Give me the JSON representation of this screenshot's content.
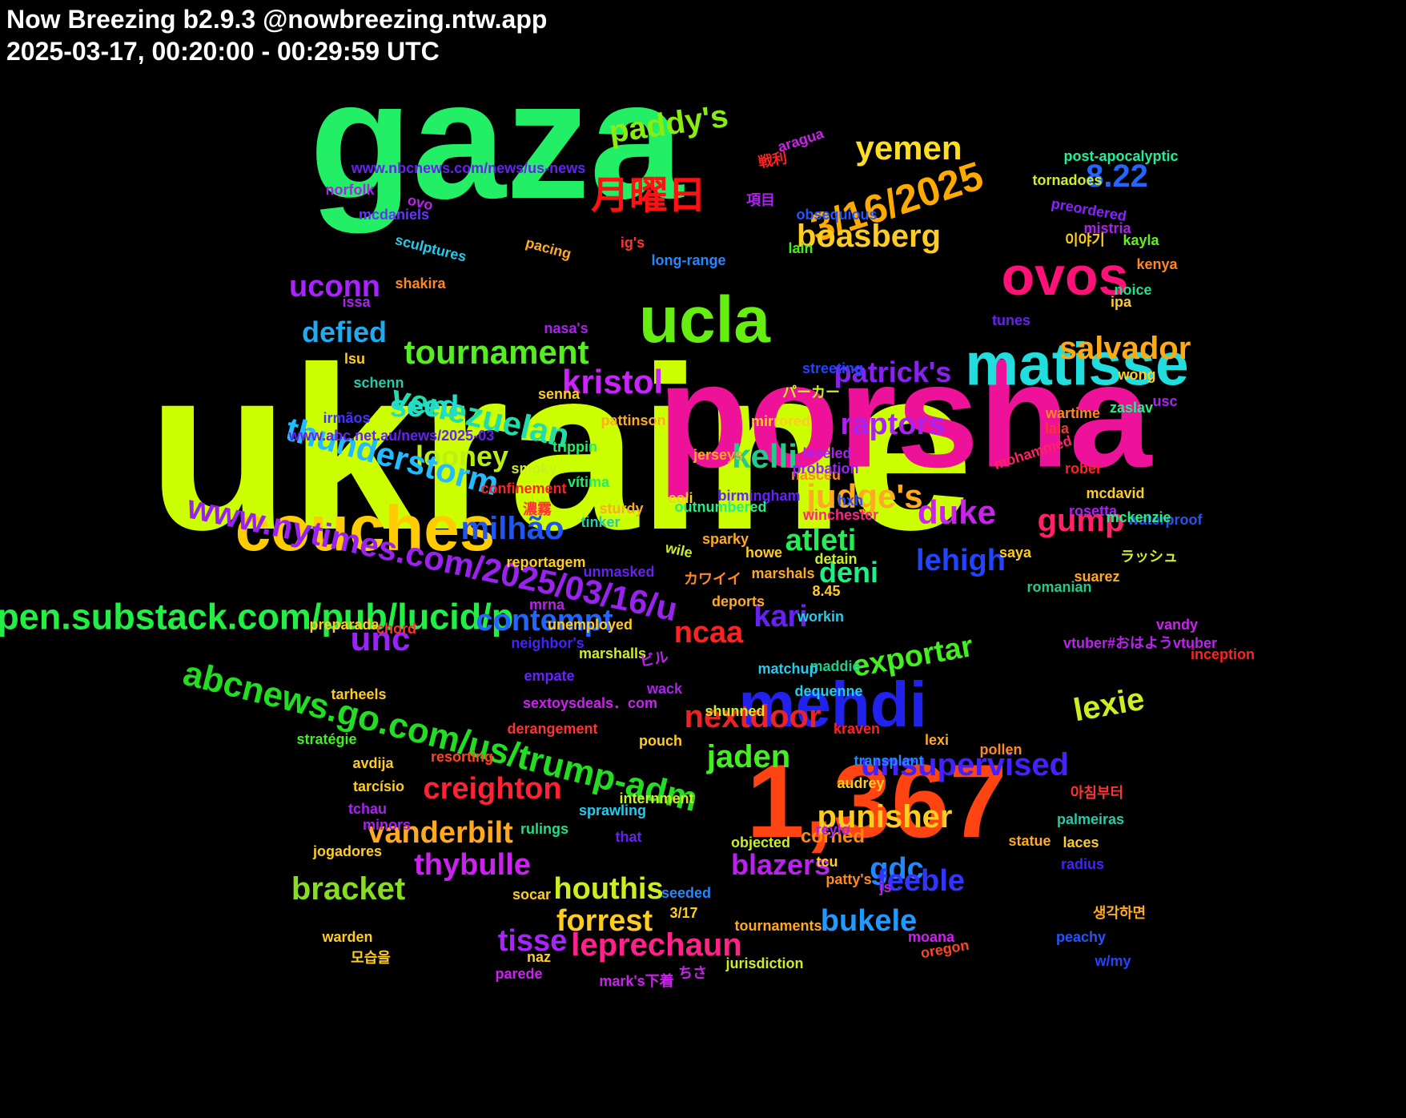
{
  "header": {
    "title": "Now Breezing b2.9.3 @nowbreezing.ntw.app",
    "subtitle": "2025-03-17, 00:20:00 - 00:29:59 UTC"
  },
  "words": [
    {
      "text": "ukraine",
      "color": "#ccff00"
    },
    {
      "text": "gaza",
      "color": "#22ee66"
    },
    {
      "text": "porsha",
      "color": "#ee1199"
    },
    {
      "text": "1,367",
      "color": "#ff4411"
    },
    {
      "text": "couches",
      "color": "#ffcc00"
    },
    {
      "text": "matisse",
      "color": "#22dddd"
    },
    {
      "text": "mehdi",
      "color": "#2222ee"
    },
    {
      "text": "ucla",
      "color": "#66ee11"
    },
    {
      "text": "ovos",
      "color": "#ff1177"
    },
    {
      "text": "open.substack.com/pub/lucid/p",
      "color": "#22ee44"
    },
    {
      "text": "www.nytimes.com/2025/03/16/u",
      "color": "#9922ee"
    },
    {
      "text": "abcnews.go.com/us/trump-adm",
      "color": "#22dd22"
    },
    {
      "text": "3/16/2025",
      "color": "#ffaa00"
    },
    {
      "text": "月曜日",
      "color": "#ff1111"
    },
    {
      "text": "paddy's",
      "color": "#88ee11"
    },
    {
      "text": "yemen",
      "color": "#ffdd22"
    },
    {
      "text": "boasberg",
      "color": "#ffcc22"
    },
    {
      "text": "8.22",
      "color": "#2266ff"
    },
    {
      "text": "uconn",
      "color": "#aa22ff"
    },
    {
      "text": "defied",
      "color": "#22aaee"
    },
    {
      "text": "tournament",
      "color": "#55ee22"
    },
    {
      "text": "kristol",
      "color": "#cc22ff"
    },
    {
      "text": "salvador",
      "color": "#ffaa11"
    },
    {
      "text": "venezuelan",
      "color": "#22ddaa"
    },
    {
      "text": "patrick's",
      "color": "#8822ee"
    },
    {
      "text": "seed",
      "color": "#22ddcc"
    },
    {
      "text": "raptors",
      "color": "#aa22ee"
    },
    {
      "text": "looney",
      "color": "#bbee11"
    },
    {
      "text": "kelli",
      "color": "#22cc88"
    },
    {
      "text": "thunderstorm",
      "color": "#22bbff"
    },
    {
      "text": "judge's",
      "color": "#ffaa22"
    },
    {
      "text": "duke",
      "color": "#cc22ee"
    },
    {
      "text": "gump",
      "color": "#ff2266"
    },
    {
      "text": "milhão",
      "color": "#2255ee"
    },
    {
      "text": "atleti",
      "color": "#22ee55"
    },
    {
      "text": "lehigh",
      "color": "#2244ff"
    },
    {
      "text": "deni",
      "color": "#22ee88"
    },
    {
      "text": "kari",
      "color": "#6622ee"
    },
    {
      "text": "contempt",
      "color": "#2266ff"
    },
    {
      "text": "ncaa",
      "color": "#ff2222"
    },
    {
      "text": "unc",
      "color": "#9922ff"
    },
    {
      "text": "exportar",
      "color": "#44ee22"
    },
    {
      "text": "nextdoor",
      "color": "#ee2222"
    },
    {
      "text": "lexie",
      "color": "#ccee22"
    },
    {
      "text": "jaden",
      "color": "#44ee22"
    },
    {
      "text": "creighton",
      "color": "#ff2233"
    },
    {
      "text": "unsupervised",
      "color": "#4422ff"
    },
    {
      "text": "vanderbilt",
      "color": "#ffaa22"
    },
    {
      "text": "punisher",
      "color": "#ffcc22"
    },
    {
      "text": "blazers",
      "color": "#bb22ee"
    },
    {
      "text": "thybulle",
      "color": "#cc22ee"
    },
    {
      "text": "gdc",
      "color": "#2288ff"
    },
    {
      "text": "bracket",
      "color": "#88dd22"
    },
    {
      "text": "houthis",
      "color": "#ccee22"
    },
    {
      "text": "feeble",
      "color": "#3333ff"
    },
    {
      "text": "bukele",
      "color": "#2299ff"
    },
    {
      "text": "tisse",
      "color": "#aa22ff"
    },
    {
      "text": "forrest",
      "color": "#ffcc22"
    },
    {
      "text": "leprechaun",
      "color": "#ff2288"
    },
    {
      "text": "corned",
      "color": "#ff8811"
    },
    {
      "text": "aragua",
      "color": "#cc22ee"
    },
    {
      "text": "戦利",
      "color": "#ff2222"
    },
    {
      "text": "www.nbcnews.com/news/us-news",
      "color": "#6622ee"
    },
    {
      "text": "post-apocalyptic",
      "color": "#22ee99"
    },
    {
      "text": "tornadoes",
      "color": "#ccee22"
    },
    {
      "text": "norfolk",
      "color": "#aa22ee"
    },
    {
      "text": "ovo",
      "color": "#bb22ee"
    },
    {
      "text": "項目",
      "color": "#aa22ee"
    },
    {
      "text": "obsequious",
      "color": "#2255ff"
    },
    {
      "text": "preordered",
      "color": "#8822ff"
    },
    {
      "text": "mistria",
      "color": "#aa22ee"
    },
    {
      "text": "mcdaniels",
      "color": "#6633ff"
    },
    {
      "text": "sculptures",
      "color": "#22ccee"
    },
    {
      "text": "ig's",
      "color": "#ff3333"
    },
    {
      "text": "이야기",
      "color": "#ffcc22"
    },
    {
      "text": "kayla",
      "color": "#66ee22"
    },
    {
      "text": "kenya",
      "color": "#ff8822"
    },
    {
      "text": "pacing",
      "color": "#ffaa22"
    },
    {
      "text": "lain",
      "color": "#44ee22"
    },
    {
      "text": "long-range",
      "color": "#2288ff"
    },
    {
      "text": "shakira",
      "color": "#ff8822"
    },
    {
      "text": "noice",
      "color": "#22dd88"
    },
    {
      "text": "issa",
      "color": "#aa22ee"
    },
    {
      "text": "ipa",
      "color": "#ffcc22"
    },
    {
      "text": "tunes",
      "color": "#6622ee"
    },
    {
      "text": "nasa's",
      "color": "#aa22ee"
    },
    {
      "text": "lsu",
      "color": "#ffcc22"
    },
    {
      "text": "schenn",
      "color": "#22ccaa"
    },
    {
      "text": "senna",
      "color": "#ffcc22"
    },
    {
      "text": "streeting",
      "color": "#2244ff"
    },
    {
      "text": "パーカー",
      "color": "#ccee22"
    },
    {
      "text": "wong",
      "color": "#ffcc22"
    },
    {
      "text": "zaslav",
      "color": "#22ee88"
    },
    {
      "text": "usc",
      "color": "#aa22ee"
    },
    {
      "text": "irmãos",
      "color": "#4433ff"
    },
    {
      "text": "mirrored",
      "color": "#ffcc22"
    },
    {
      "text": "wartime",
      "color": "#ff8822"
    },
    {
      "text": "pattinson",
      "color": "#ffaa22"
    },
    {
      "text": "lala",
      "color": "#ff3333"
    },
    {
      "text": "mohammed",
      "color": "#ff2266"
    },
    {
      "text": "www.abc.net.au/news/2025-03",
      "color": "#6622ee"
    },
    {
      "text": "leveled",
      "color": "#aa22ee"
    },
    {
      "text": "trippin",
      "color": "#22ee66"
    },
    {
      "text": "jerseys",
      "color": "#ffaa22"
    },
    {
      "text": "nasceu",
      "color": "#ff8822"
    },
    {
      "text": "smoky",
      "color": "#ccee22"
    },
    {
      "text": "probation",
      "color": "#9922ff"
    },
    {
      "text": "rober",
      "color": "#ff2222"
    },
    {
      "text": "vítima",
      "color": "#22ee66"
    },
    {
      "text": "confinement",
      "color": "#ff2222"
    },
    {
      "text": "birmingham",
      "color": "#6622ff"
    },
    {
      "text": "mcdavid",
      "color": "#ffcc22"
    },
    {
      "text": "hxh",
      "color": "#2255ff"
    },
    {
      "text": "rosetta",
      "color": "#aa22ee"
    },
    {
      "text": "sturdy",
      "color": "#ffaa22"
    },
    {
      "text": "outnumbered",
      "color": "#22ee88"
    },
    {
      "text": "waterproof",
      "color": "#2255ee"
    },
    {
      "text": "mckenzie",
      "color": "#22ee88"
    },
    {
      "text": "濃霧",
      "color": "#ff3333"
    },
    {
      "text": "coli",
      "color": "#ffcc22"
    },
    {
      "text": "tinker",
      "color": "#22ccaa"
    },
    {
      "text": "winchester",
      "color": "#ff2288"
    },
    {
      "text": "sparky",
      "color": "#ffaa22"
    },
    {
      "text": "wile",
      "color": "#ccee22"
    },
    {
      "text": "ラッシュ",
      "color": "#ccee22"
    },
    {
      "text": "saya",
      "color": "#ffcc22"
    },
    {
      "text": "howe",
      "color": "#ffcc22"
    },
    {
      "text": "reportagem",
      "color": "#ffcc22"
    },
    {
      "text": "detain",
      "color": "#ccee22"
    },
    {
      "text": "unmasked",
      "color": "#6622ee"
    },
    {
      "text": "suarez",
      "color": "#ffaa22"
    },
    {
      "text": "marshals",
      "color": "#ffaa22"
    },
    {
      "text": "romanian",
      "color": "#22cc88"
    },
    {
      "text": "8.45",
      "color": "#ffcc22"
    },
    {
      "text": "カワイイ",
      "color": "#ff8822"
    },
    {
      "text": "deports",
      "color": "#ffaa22"
    },
    {
      "text": "mrna",
      "color": "#bb22ee"
    },
    {
      "text": "workin",
      "color": "#22ccee"
    },
    {
      "text": "preparada",
      "color": "#ffcc22"
    },
    {
      "text": "vandy",
      "color": "#cc22ee"
    },
    {
      "text": "chord",
      "color": "#ff3333"
    },
    {
      "text": "unemployed",
      "color": "#ffcc22"
    },
    {
      "text": "neighbor's",
      "color": "#4422ff"
    },
    {
      "text": "vtuber#おはようvtuber",
      "color": "#bb22ee"
    },
    {
      "text": "inception",
      "color": "#ff2222"
    },
    {
      "text": "marshalls",
      "color": "#ccee22"
    },
    {
      "text": "ビル",
      "color": "#bb22ee"
    },
    {
      "text": "maddie",
      "color": "#22cc88"
    },
    {
      "text": "matchup",
      "color": "#22ccee"
    },
    {
      "text": "empate",
      "color": "#6622ff"
    },
    {
      "text": "tarheels",
      "color": "#ffcc22"
    },
    {
      "text": "wack",
      "color": "#aa22ee"
    },
    {
      "text": "dequenne",
      "color": "#22ccee"
    },
    {
      "text": "sextoysdeals．com",
      "color": "#cc22ee"
    },
    {
      "text": "shunned",
      "color": "#ccee22"
    },
    {
      "text": "derangement",
      "color": "#ff3333"
    },
    {
      "text": "kraven",
      "color": "#ff2222"
    },
    {
      "text": "stratégie",
      "color": "#44ee22"
    },
    {
      "text": "avdija",
      "color": "#ffcc22"
    },
    {
      "text": "lexi",
      "color": "#ffaa22"
    },
    {
      "text": "pouch",
      "color": "#ffcc22"
    },
    {
      "text": "resorting",
      "color": "#ff4422"
    },
    {
      "text": "pollen",
      "color": "#ff8822"
    },
    {
      "text": "tarcísio",
      "color": "#ffcc22"
    },
    {
      "text": "transplant",
      "color": "#2288ff"
    },
    {
      "text": "audrey",
      "color": "#ffcc22"
    },
    {
      "text": "tchau",
      "color": "#aa22ee"
    },
    {
      "text": "internment",
      "color": "#ccee22"
    },
    {
      "text": "아침부터",
      "color": "#ff3333"
    },
    {
      "text": "sprawling",
      "color": "#22ccee"
    },
    {
      "text": "reylo",
      "color": "#aa22ee"
    },
    {
      "text": "rulings",
      "color": "#22dd88"
    },
    {
      "text": "palmeiras",
      "color": "#22ccaa"
    },
    {
      "text": "laces",
      "color": "#ffcc22"
    },
    {
      "text": "minors",
      "color": "#aa22ee"
    },
    {
      "text": "that",
      "color": "#6622ee"
    },
    {
      "text": "objected",
      "color": "#ccee22"
    },
    {
      "text": "statue",
      "color": "#ffaa22"
    },
    {
      "text": "jogadores",
      "color": "#ffcc22"
    },
    {
      "text": "radius",
      "color": "#4422ff"
    },
    {
      "text": "tcu",
      "color": "#ffcc22"
    },
    {
      "text": "patty's",
      "color": "#ff8822"
    },
    {
      "text": "js",
      "color": "#bb22ee"
    },
    {
      "text": "socar",
      "color": "#ffcc22"
    },
    {
      "text": "seeded",
      "color": "#2288ff"
    },
    {
      "text": "생각하면",
      "color": "#ffaa22"
    },
    {
      "text": "3/17",
      "color": "#ffcc22"
    },
    {
      "text": "tournaments",
      "color": "#ffaa22"
    },
    {
      "text": "peachy",
      "color": "#2255ff"
    },
    {
      "text": "warden",
      "color": "#ffcc22"
    },
    {
      "text": "moana",
      "color": "#cc22ee"
    },
    {
      "text": "모습을",
      "color": "#ffcc22"
    },
    {
      "text": "w/my",
      "color": "#2244ff"
    },
    {
      "text": "oregon",
      "color": "#ff4422"
    },
    {
      "text": "jurisdiction",
      "color": "#ccee22"
    },
    {
      "text": "naz",
      "color": "#ffcc22"
    },
    {
      "text": "parede",
      "color": "#cc22ee"
    },
    {
      "text": "ちさ",
      "color": "#cc22ee"
    },
    {
      "text": "mark's下着",
      "color": "#cc22ee"
    }
  ]
}
